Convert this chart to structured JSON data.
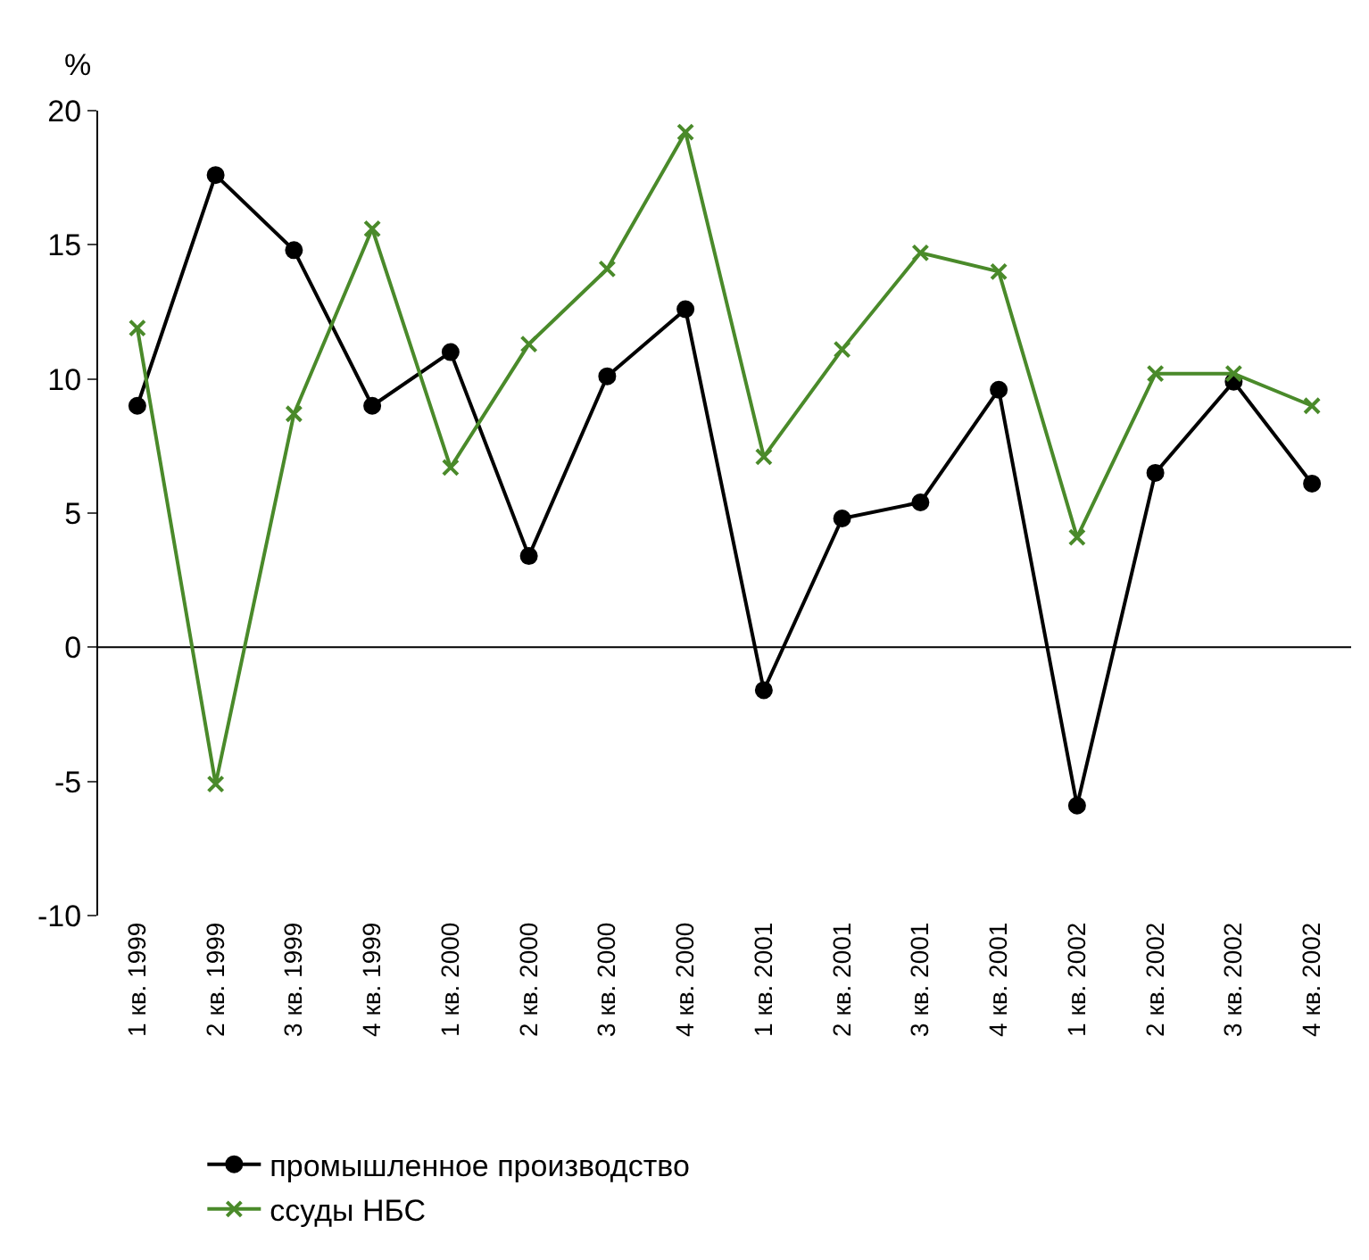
{
  "chart_data": {
    "type": "line",
    "ylabel": "%",
    "categories": [
      "1 кв. 1999",
      "2 кв. 1999",
      "3 кв. 1999",
      "4 кв. 1999",
      "1 кв. 2000",
      "2 кв. 2000",
      "3 кв. 2000",
      "4 кв. 2000",
      "1 кв. 2001",
      "2 кв. 2001",
      "3 кв. 2001",
      "4 кв. 2001",
      "1 кв. 2002",
      "2 кв. 2002",
      "3 кв. 2002",
      "4 кв. 2002"
    ],
    "series": [
      {
        "name": "промышленное производство",
        "color": "#000000",
        "marker": "circle",
        "values": [
          9.0,
          17.6,
          14.8,
          9.0,
          11.0,
          3.4,
          10.1,
          12.6,
          -1.6,
          4.8,
          5.4,
          9.6,
          -5.9,
          6.5,
          9.9,
          6.1
        ]
      },
      {
        "name": "ссуды НБС",
        "color": "#4a8a2a",
        "marker": "cross",
        "values": [
          11.9,
          -5.1,
          8.7,
          15.6,
          6.7,
          11.3,
          14.1,
          19.2,
          7.1,
          11.1,
          14.7,
          14.0,
          4.1,
          10.2,
          10.2,
          9.0
        ]
      }
    ],
    "ylim": [
      -10,
      20
    ],
    "yticks": [
      -10,
      -5,
      0,
      5,
      10,
      15,
      20
    ],
    "ref_lines": [
      {
        "axis": "y",
        "value": 0,
        "color": "#000000"
      }
    ],
    "legend": "bottom",
    "line_style": "solid"
  }
}
